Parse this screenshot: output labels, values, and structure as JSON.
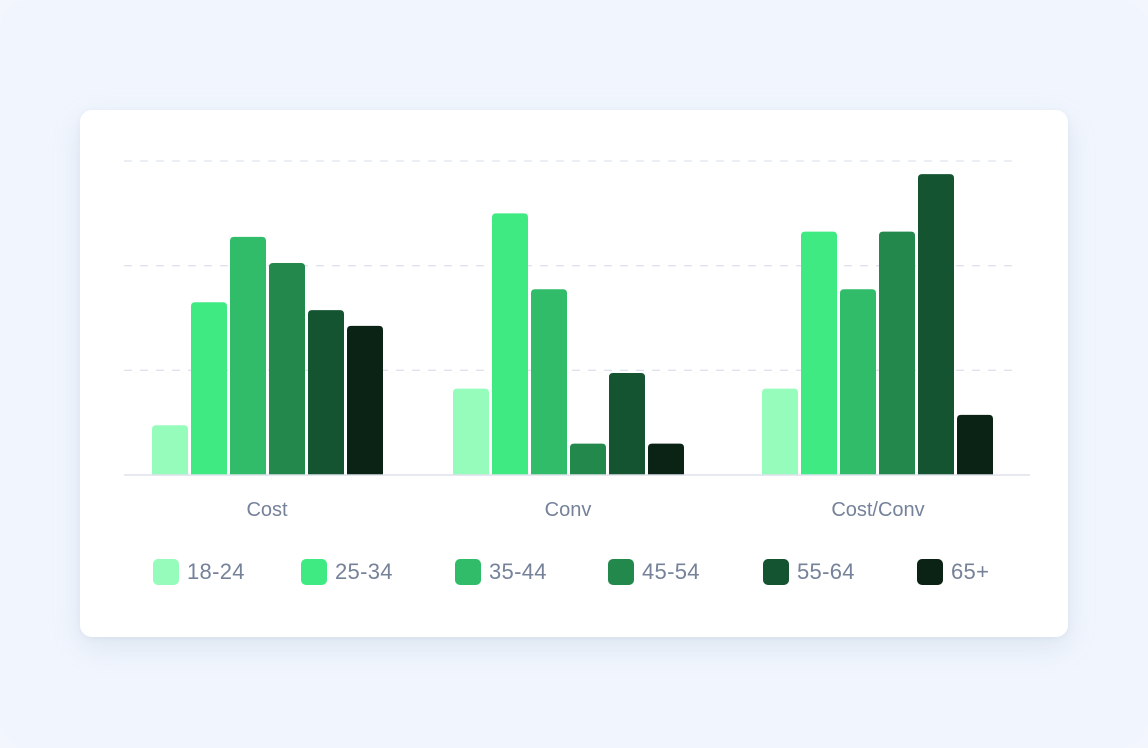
{
  "chart_data": {
    "type": "bar",
    "categories": [
      "Cost",
      "Conv",
      "Cost/Conv"
    ],
    "series": [
      {
        "name": "18-24",
        "color": "#95fcbc",
        "values": [
          9.5,
          16.5,
          16.5
        ]
      },
      {
        "name": "25-34",
        "color": "#3fea83",
        "values": [
          33,
          50,
          46.5
        ]
      },
      {
        "name": "35-44",
        "color": "#30bc69",
        "values": [
          45.5,
          35.5,
          35.5
        ]
      },
      {
        "name": "45-54",
        "color": "#23884c",
        "values": [
          40.5,
          6,
          46.5
        ]
      },
      {
        "name": "55-64",
        "color": "#155431",
        "values": [
          31.5,
          19.5,
          57.5
        ]
      },
      {
        "name": "65+",
        "color": "#0a2315",
        "values": [
          28.5,
          6,
          11.5
        ]
      }
    ],
    "ylim": [
      0,
      60
    ],
    "gridlines": [
      20,
      40,
      60
    ],
    "legend_position": "bottom",
    "title": "",
    "xlabel": "",
    "ylabel": ""
  },
  "legend": [
    {
      "label": "18-24",
      "color": "#95fcbc"
    },
    {
      "label": "25-34",
      "color": "#3fea83"
    },
    {
      "label": "35-44",
      "color": "#30bc69"
    },
    {
      "label": "45-54",
      "color": "#23884c"
    },
    {
      "label": "55-64",
      "color": "#155431"
    },
    {
      "label": "65+",
      "color": "#0a2315"
    }
  ]
}
